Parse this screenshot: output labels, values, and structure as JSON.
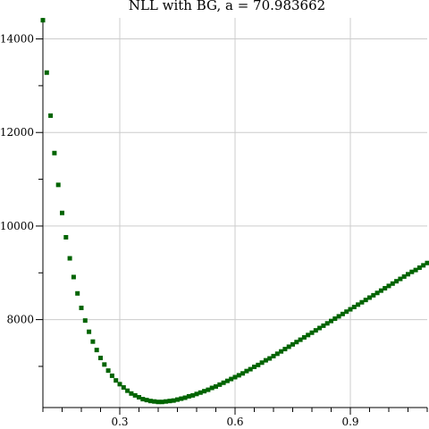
{
  "chart_data": {
    "type": "scatter",
    "title": "NLL with BG, a = 70.983662",
    "xlabel": "",
    "ylabel": "",
    "xlim": [
      0.1,
      1.1
    ],
    "ylim": [
      6120,
      14450
    ],
    "grid": true,
    "x_ticks": [
      0.3,
      0.6,
      0.9
    ],
    "x_tick_labels": [
      "0.3",
      "0.6",
      "0.9"
    ],
    "y_ticks": [
      8000,
      10000,
      12000,
      14000
    ],
    "y_tick_labels": [
      "8000",
      "10000",
      "12000",
      "14000"
    ],
    "series": [
      {
        "color": "#006400",
        "marker": "square",
        "x": [
          0.1,
          0.11,
          0.12,
          0.13,
          0.14,
          0.15,
          0.16,
          0.17,
          0.18,
          0.19,
          0.2,
          0.21,
          0.22,
          0.23,
          0.24,
          0.25,
          0.26,
          0.27,
          0.28,
          0.29,
          0.3,
          0.31,
          0.32,
          0.33,
          0.34,
          0.35,
          0.36,
          0.37,
          0.38,
          0.39,
          0.4,
          0.41,
          0.42,
          0.43,
          0.44,
          0.45,
          0.46,
          0.47,
          0.48,
          0.49,
          0.5,
          0.51,
          0.52,
          0.53,
          0.54,
          0.55,
          0.56,
          0.57,
          0.58,
          0.59,
          0.6,
          0.61,
          0.62,
          0.63,
          0.64,
          0.65,
          0.66,
          0.67,
          0.68,
          0.69,
          0.7,
          0.71,
          0.72,
          0.73,
          0.74,
          0.75,
          0.76,
          0.77,
          0.78,
          0.79,
          0.8,
          0.81,
          0.82,
          0.83,
          0.84,
          0.85,
          0.86,
          0.87,
          0.88,
          0.89,
          0.9,
          0.91,
          0.92,
          0.93,
          0.94,
          0.95,
          0.96,
          0.97,
          0.98,
          0.99,
          1.0,
          1.01,
          1.02,
          1.03,
          1.04,
          1.05,
          1.06,
          1.07,
          1.08,
          1.09,
          1.1
        ],
        "y": [
          14400,
          13280,
          12360,
          11560,
          10880,
          10280,
          9760,
          9310,
          8910,
          8560,
          8250,
          7980,
          7740,
          7530,
          7350,
          7180,
          7040,
          6910,
          6800,
          6700,
          6620,
          6550,
          6480,
          6420,
          6380,
          6340,
          6300,
          6280,
          6260,
          6250,
          6240,
          6240,
          6250,
          6260,
          6270,
          6290,
          6310,
          6330,
          6360,
          6380,
          6410,
          6440,
          6470,
          6500,
          6540,
          6570,
          6610,
          6650,
          6690,
          6730,
          6770,
          6810,
          6850,
          6900,
          6940,
          6990,
          7030,
          7080,
          7130,
          7170,
          7220,
          7270,
          7320,
          7370,
          7420,
          7470,
          7520,
          7570,
          7620,
          7670,
          7720,
          7770,
          7820,
          7870,
          7920,
          7970,
          8020,
          8070,
          8120,
          8170,
          8220,
          8270,
          8320,
          8370,
          8420,
          8470,
          8520,
          8570,
          8620,
          8670,
          8720,
          8770,
          8820,
          8870,
          8920,
          8970,
          9020,
          9060,
          9110,
          9160,
          9210
        ]
      }
    ]
  }
}
